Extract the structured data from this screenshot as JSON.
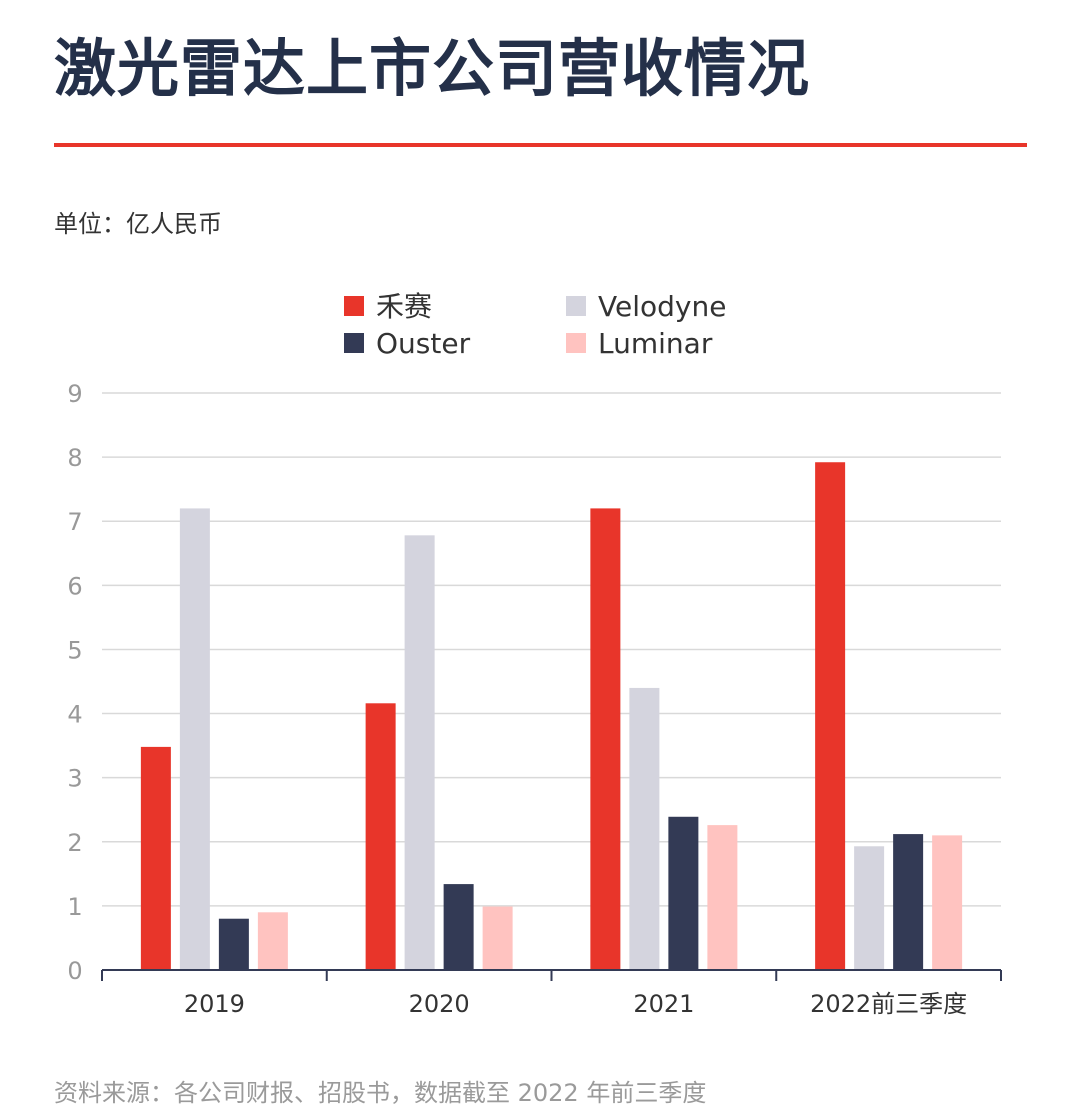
{
  "header": {
    "title": "激光雷达上市公司营收情况",
    "unit": "单位：亿人民币"
  },
  "footer": {
    "source": "资料来源：各公司财报、招股书，数据截至 2022 年前三季度"
  },
  "colors": {
    "accent": "#e8352a",
    "title": "#243049",
    "hesai": "#e8352a",
    "velodyne": "#d4d4de",
    "ouster": "#333a55",
    "luminar": "#ffc3c0"
  },
  "chart_data": {
    "type": "bar",
    "title": "激光雷达上市公司营收情况",
    "xlabel": "",
    "ylabel": "单位：亿人民币",
    "categories": [
      "2019",
      "2020",
      "2021",
      "2022前三季度"
    ],
    "ylim": [
      0,
      9
    ],
    "yticks": [
      0,
      1,
      2,
      3,
      4,
      5,
      6,
      7,
      8,
      9
    ],
    "grid": true,
    "legend_position": "top",
    "series": [
      {
        "name": "禾赛",
        "color": "#e8352a",
        "values": [
          3.48,
          4.16,
          7.2,
          7.92
        ]
      },
      {
        "name": "Velodyne",
        "color": "#d4d4de",
        "values": [
          7.2,
          6.78,
          4.4,
          1.93
        ]
      },
      {
        "name": "Ouster",
        "color": "#333a55",
        "values": [
          0.8,
          1.34,
          2.39,
          2.12
        ]
      },
      {
        "name": "Luminar",
        "color": "#ffc3c0",
        "values": [
          0.9,
          0.99,
          2.26,
          2.1
        ]
      }
    ]
  }
}
